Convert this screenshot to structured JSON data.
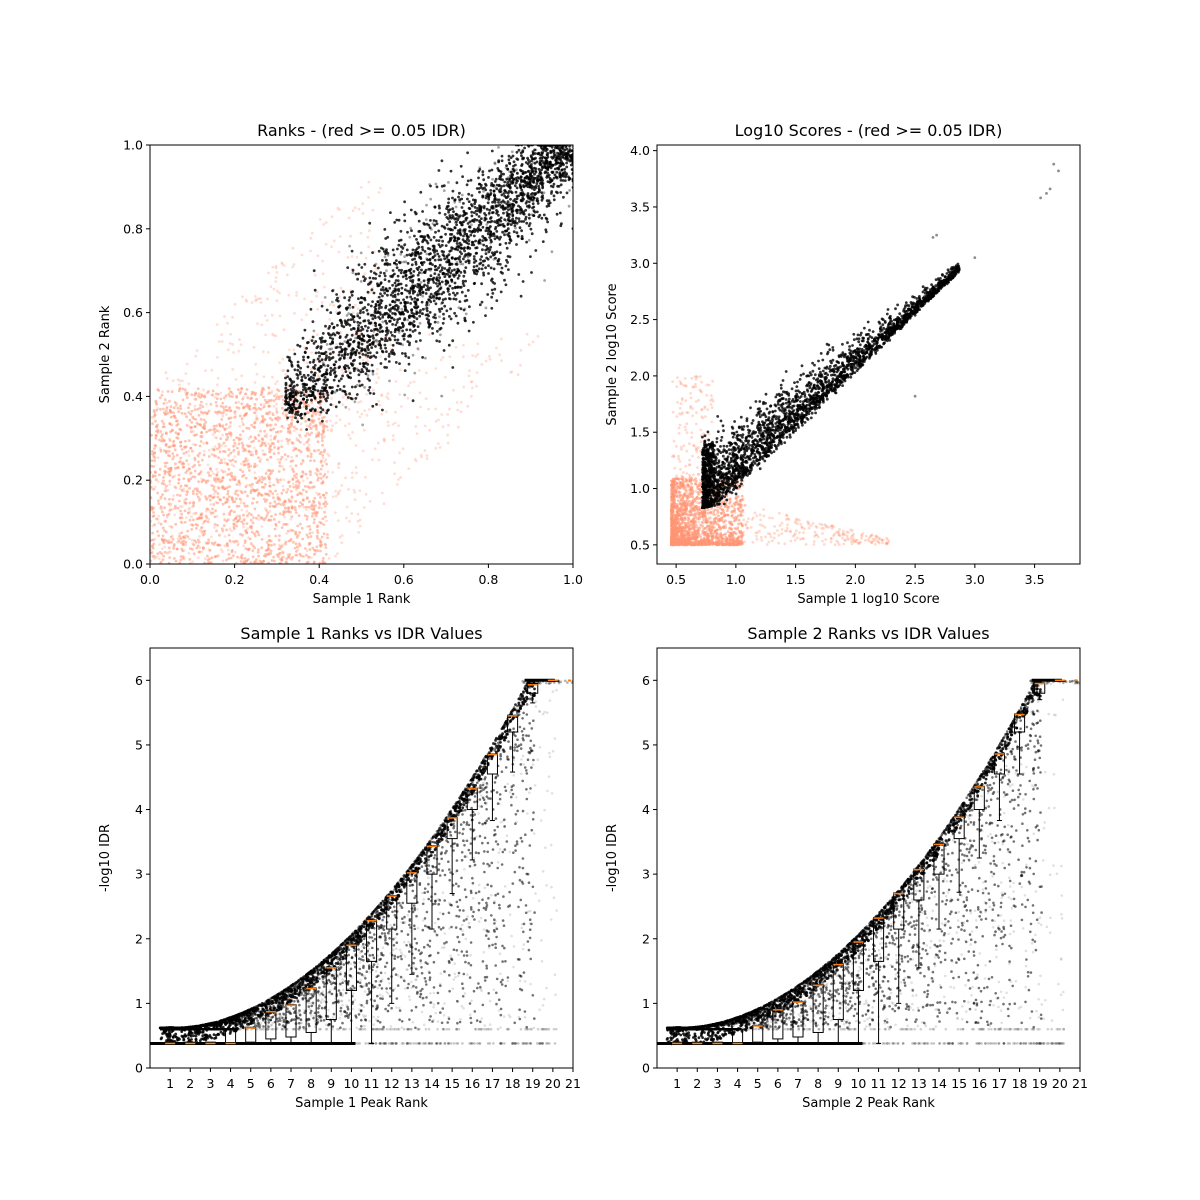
{
  "chart_data": [
    {
      "type": "scatter",
      "title": "Ranks - (red >= 0.05 IDR)",
      "xlabel": "Sample 1 Rank",
      "ylabel": "Sample 2 Rank",
      "xlim": [
        0,
        1
      ],
      "ylim": [
        0,
        1
      ],
      "xticks": [
        0.0,
        0.2,
        0.4,
        0.6,
        0.8,
        1.0
      ],
      "yticks": [
        0.0,
        0.2,
        0.4,
        0.6,
        0.8,
        1.0
      ],
      "xtick_labels": [
        "0.0",
        "0.2",
        "0.4",
        "0.6",
        "0.8",
        "1.0"
      ],
      "ytick_labels": [
        "0.0",
        "0.2",
        "0.4",
        "0.6",
        "0.8",
        "1.0"
      ],
      "series": [
        {
          "color": "#FF9473",
          "description_region": "low-rank points (IDR >= 0.05), concentrated below 0.4 on both axes, fanning along edges"
        },
        {
          "color": "#000000",
          "description_region": "high-rank points (IDR < 0.05), elongated band from (0.32,0.32) to (1.0,1.0)"
        }
      ],
      "grid": false
    },
    {
      "type": "scatter",
      "title": "Log10 Scores - (red >= 0.05 IDR)",
      "xlabel": "Sample 1 log10 Score",
      "ylabel": "Sample 2 log10 Score",
      "xlim": [
        0.34,
        3.88
      ],
      "ylim": [
        0.33,
        4.05
      ],
      "xticks": [
        0.5,
        1.0,
        1.5,
        2.0,
        2.5,
        3.0,
        3.5
      ],
      "yticks": [
        0.5,
        1.0,
        1.5,
        2.0,
        2.5,
        3.0,
        3.5,
        4.0
      ],
      "xtick_labels": [
        "0.5",
        "1.0",
        "1.5",
        "2.0",
        "2.5",
        "3.0",
        "3.5"
      ],
      "ytick_labels": [
        "0.5",
        "1.0",
        "1.5",
        "2.0",
        "2.5",
        "3.0",
        "3.5",
        "4.0"
      ],
      "series": [
        {
          "color": "#FF9473"
        },
        {
          "color": "#000000"
        }
      ],
      "grid": false
    },
    {
      "type": "scatter",
      "title": "Sample 1 Ranks vs IDR Values",
      "xlabel": "Sample 1 Peak Rank",
      "ylabel": "-log10 IDR",
      "xlim": [
        0,
        21
      ],
      "ylim": [
        0,
        6.5
      ],
      "xticks": [
        1,
        2,
        3,
        4,
        5,
        6,
        7,
        8,
        9,
        10,
        11,
        12,
        13,
        14,
        15,
        16,
        17,
        18,
        19,
        20,
        21
      ],
      "yticks": [
        0,
        1,
        2,
        3,
        4,
        5,
        6
      ],
      "xtick_labels": [
        "1",
        "2",
        "3",
        "4",
        "5",
        "6",
        "7",
        "8",
        "9",
        "10",
        "11",
        "12",
        "13",
        "14",
        "15",
        "16",
        "17",
        "18",
        "19",
        "20",
        "21"
      ],
      "ytick_labels": [
        "0",
        "1",
        "2",
        "3",
        "4",
        "5",
        "6"
      ],
      "boxplot_medians": [
        0.38,
        0.38,
        0.38,
        0.38,
        0.62,
        0.87,
        0.97,
        1.23,
        1.55,
        1.9,
        2.28,
        2.66,
        3.02,
        3.43,
        3.87,
        4.32,
        4.85,
        5.45,
        5.93,
        6.0
      ],
      "boxplot_whisker_low": [
        0.38,
        0.38,
        0.38,
        0.38,
        0.38,
        0.38,
        0.38,
        0.38,
        0.38,
        0.38,
        0.38,
        1.0,
        1.45,
        2.15,
        2.7,
        3.22,
        3.83,
        4.58,
        5.65,
        6.0
      ],
      "boxplot_q1": [
        0.38,
        0.38,
        0.38,
        0.38,
        0.4,
        0.45,
        0.48,
        0.55,
        0.75,
        1.2,
        1.65,
        2.15,
        2.55,
        3.0,
        3.55,
        4.0,
        4.55,
        5.2,
        5.8,
        6.0
      ],
      "boxplot_q3": [
        0.4,
        0.4,
        0.4,
        0.6,
        0.63,
        0.88,
        0.98,
        1.24,
        1.56,
        1.91,
        2.29,
        2.67,
        3.03,
        3.44,
        3.88,
        4.33,
        4.86,
        5.46,
        5.95,
        6.0
      ]
    },
    {
      "type": "scatter",
      "title": "Sample 2 Ranks vs IDR Values",
      "xlabel": "Sample 2 Peak Rank",
      "ylabel": "-log10 IDR",
      "xlim": [
        0,
        21
      ],
      "ylim": [
        0,
        6.5
      ],
      "xticks": [
        1,
        2,
        3,
        4,
        5,
        6,
        7,
        8,
        9,
        10,
        11,
        12,
        13,
        14,
        15,
        16,
        17,
        18,
        19,
        20,
        21
      ],
      "yticks": [
        0,
        1,
        2,
        3,
        4,
        5,
        6
      ],
      "xtick_labels": [
        "1",
        "2",
        "3",
        "4",
        "5",
        "6",
        "7",
        "8",
        "9",
        "10",
        "11",
        "12",
        "13",
        "14",
        "15",
        "16",
        "17",
        "18",
        "19",
        "20",
        "21"
      ],
      "ytick_labels": [
        "0",
        "1",
        "2",
        "3",
        "4",
        "5",
        "6"
      ],
      "boxplot_medians": [
        0.38,
        0.38,
        0.38,
        0.38,
        0.65,
        0.9,
        1.02,
        1.28,
        1.6,
        1.95,
        2.32,
        2.7,
        3.07,
        3.46,
        3.88,
        4.35,
        4.86,
        5.47,
        5.95,
        6.0
      ],
      "boxplot_whisker_low": [
        0.38,
        0.38,
        0.38,
        0.38,
        0.38,
        0.38,
        0.38,
        0.38,
        0.38,
        0.38,
        0.38,
        1.0,
        1.55,
        2.15,
        2.72,
        3.25,
        3.83,
        4.55,
        5.7,
        6.0
      ],
      "boxplot_q1": [
        0.38,
        0.38,
        0.38,
        0.38,
        0.4,
        0.45,
        0.48,
        0.55,
        0.75,
        1.2,
        1.65,
        2.15,
        2.6,
        3.0,
        3.55,
        4.0,
        4.55,
        5.2,
        5.8,
        6.0
      ],
      "boxplot_q3": [
        0.4,
        0.4,
        0.4,
        0.6,
        0.66,
        0.91,
        1.03,
        1.29,
        1.61,
        1.96,
        2.33,
        2.71,
        3.08,
        3.47,
        3.89,
        4.36,
        4.87,
        5.48,
        5.96,
        6.0
      ]
    }
  ],
  "colors": {
    "reproducible": "#000000",
    "irreproducible": "#FF9473",
    "median": "#FF7F0E"
  }
}
